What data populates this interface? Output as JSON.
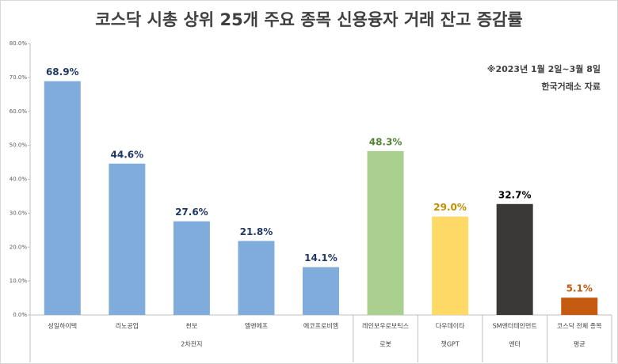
{
  "chart_data": {
    "type": "bar",
    "title": "코스닥 시총 상위 25개 주요 종목 신용융자 거래 잔고 증감률",
    "annotations": [
      "※2023년 1월 2일~3월 8일",
      "한국거래소 자료"
    ],
    "categories": [
      "성일하이텍",
      "리노공업",
      "천보",
      "엘앤에프",
      "에코프로비엠",
      "레인보우로보틱스",
      "다우데이타",
      "SM엔터테인먼트",
      "코스닥 전체 종목"
    ],
    "groups": [
      "2차전지",
      "2차전지",
      "2차전지",
      "2차전지",
      "2차전지",
      "로봇",
      "챗GPT",
      "엔터",
      "평균"
    ],
    "values": [
      68.9,
      44.6,
      27.6,
      21.8,
      14.1,
      48.3,
      29.0,
      32.7,
      5.1
    ],
    "value_labels": [
      "68.9%",
      "44.6%",
      "27.6%",
      "21.8%",
      "14.1%",
      "48.3%",
      "29.0%",
      "32.7%",
      "5.1%"
    ],
    "colors": [
      "#7facdb",
      "#7facdb",
      "#7facdb",
      "#7facdb",
      "#7facdb",
      "#a9d08e",
      "#ffd966",
      "#3b3838",
      "#c55a11"
    ],
    "label_colors": [
      "#1f3864",
      "#1f3864",
      "#1f3864",
      "#1f3864",
      "#1f3864",
      "#548235",
      "#bf8f00",
      "#000000",
      "#c55a11"
    ],
    "ylim": [
      0,
      80
    ],
    "yticks": [
      {
        "value": 0,
        "label": "0.0%"
      },
      {
        "value": 10,
        "label": "10.0%"
      },
      {
        "value": 20,
        "label": "20.0%"
      },
      {
        "value": 30,
        "label": "30.0%"
      },
      {
        "value": 40,
        "label": "40.0%"
      },
      {
        "value": 50,
        "label": "50.0%"
      },
      {
        "value": 60,
        "label": "60.0%"
      },
      {
        "value": 70,
        "label": "70.0%"
      },
      {
        "value": 80,
        "label": "80.0%"
      }
    ],
    "grid": false
  }
}
